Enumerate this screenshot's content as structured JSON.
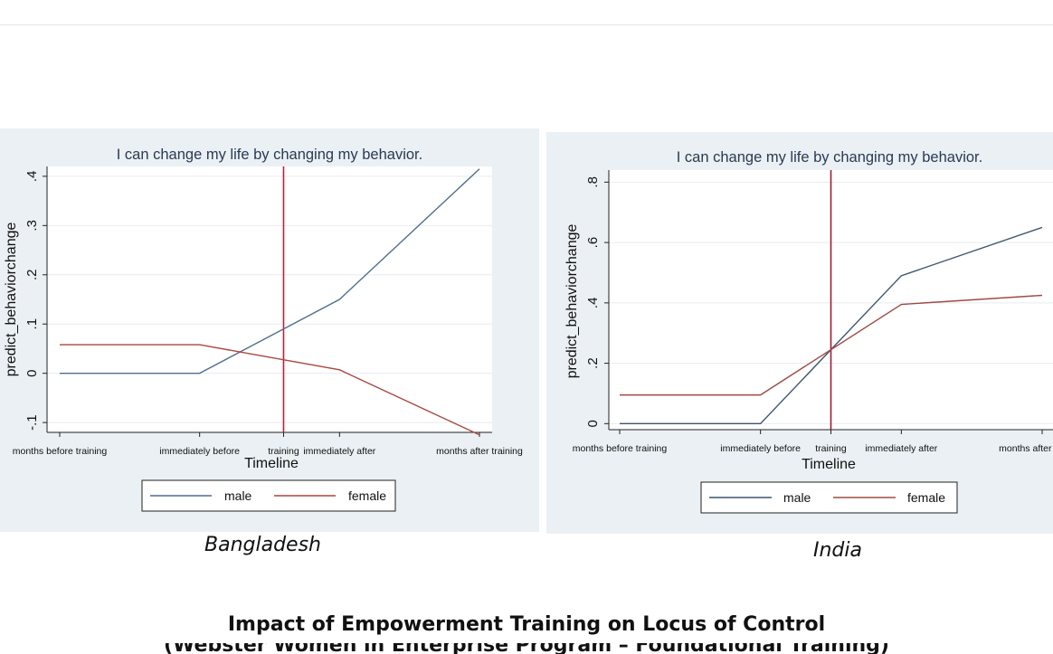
{
  "figure": {
    "title": "Impact of Empowerment Training on Locus of Control",
    "subtitle": "(Webster Women in Enterprise Program – Foundational Training)"
  },
  "chart_data": [
    {
      "type": "line",
      "caption": "Bangladesh",
      "title": "I can change my life by changing my behavior.",
      "xlabel": "Timeline",
      "ylabel": "predict_behaviorchange",
      "categories": [
        "months before training",
        "immediately before",
        "training",
        "immediately after",
        "months after training"
      ],
      "x_ticks": [
        {
          "label": "months before training",
          "x": 0
        },
        {
          "label": "immediately before",
          "x": 1
        },
        {
          "label": "training",
          "x": 1.6
        },
        {
          "label": "immediately after",
          "x": 2
        },
        {
          "label": "months after training",
          "x": 3
        }
      ],
      "x": [
        0,
        1,
        2,
        3
      ],
      "ylim": [
        -0.12,
        0.42
      ],
      "yticks": [
        -0.1,
        0,
        0.1,
        0.2,
        0.3,
        0.4
      ],
      "ytick_labels": [
        "-.1",
        "0",
        ".1",
        ".2",
        ".3",
        ".4"
      ],
      "xline": 1.6,
      "xline_color": "#c41e3a",
      "series": [
        {
          "name": "male",
          "color": "#4f6f90",
          "values": [
            0,
            0,
            0.15,
            0.415
          ]
        },
        {
          "name": "female",
          "color": "#a8473f",
          "values": [
            0.058,
            0.058,
            0.007,
            -0.125
          ]
        }
      ],
      "legend_position": "bottom",
      "grid": true
    },
    {
      "type": "line",
      "caption": "India",
      "title": "I can change my life by changing my behavior.",
      "xlabel": "Timeline",
      "ylabel": "predict_behaviorchange",
      "categories": [
        "months before training",
        "immediately before",
        "training",
        "immediately after",
        "months after training"
      ],
      "x_ticks": [
        {
          "label": "months before training",
          "x": 0
        },
        {
          "label": "immediately before",
          "x": 1
        },
        {
          "label": "training",
          "x": 1.5
        },
        {
          "label": "immediately after",
          "x": 2
        },
        {
          "label": "months after training",
          "x": 3
        }
      ],
      "x": [
        0,
        1,
        2,
        3
      ],
      "ylim": [
        -0.02,
        0.84
      ],
      "yticks": [
        0,
        0.2,
        0.4,
        0.6,
        0.8
      ],
      "ytick_labels": [
        "0",
        ".2",
        ".4",
        ".6",
        ".8"
      ],
      "xline": 1.5,
      "xline_color": "#9e1b3c",
      "series": [
        {
          "name": "male",
          "color": "#3d5570",
          "values": [
            0,
            0,
            0.49,
            0.65
          ]
        },
        {
          "name": "female",
          "color": "#a04a45",
          "values": [
            0.095,
            0.095,
            0.395,
            0.425
          ]
        }
      ],
      "legend_position": "bottom",
      "grid": true
    }
  ]
}
